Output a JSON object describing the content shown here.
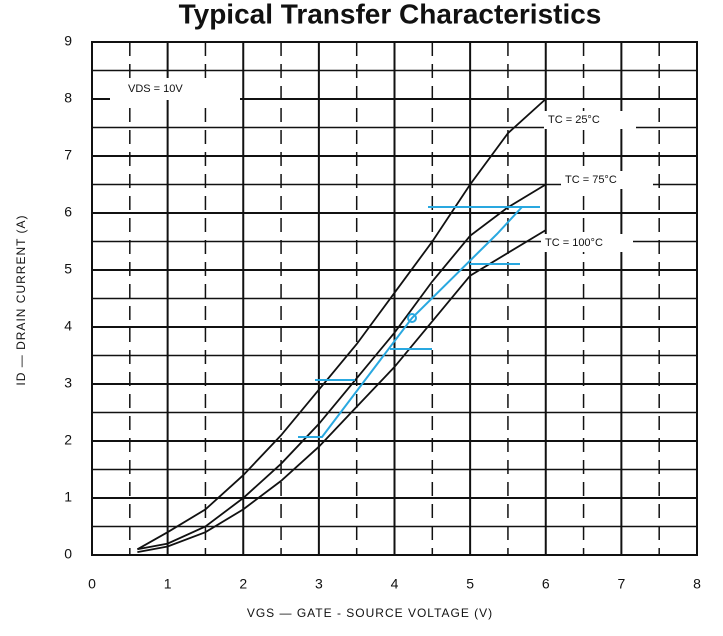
{
  "chart_data": {
    "type": "line",
    "title": "Typical Transfer Characteristics",
    "xlabel": "VGS — GATE - SOURCE VOLTAGE (V)",
    "ylabel": "ID — DRAIN CURRENT (A)",
    "annotation": "VDS = 10V",
    "xlim": [
      0,
      8
    ],
    "ylim": [
      0,
      9
    ],
    "xticks": [
      0,
      1,
      2,
      3,
      4,
      5,
      6,
      7,
      8
    ],
    "yticks": [
      0,
      1,
      2,
      3,
      4,
      5,
      6,
      7,
      8,
      9
    ],
    "x_minor_grid": [
      0.5,
      1.5,
      2.5,
      3.5,
      4.5,
      5.5,
      6.5,
      7.5
    ],
    "y_minor_grid": [
      0.5,
      1.5,
      2.5,
      3.5,
      4.5,
      5.5,
      6.5,
      7.5,
      8.5
    ],
    "grid": true,
    "x": [
      0.6,
      1,
      1.5,
      2,
      2.5,
      3,
      3.5,
      4,
      4.5,
      5,
      5.5,
      6
    ],
    "series": [
      {
        "name": "TC = 25°C",
        "color": "#111111",
        "values": [
          0.1,
          0.4,
          0.8,
          1.4,
          2.1,
          2.9,
          3.7,
          4.6,
          5.5,
          6.5,
          7.4,
          8.0
        ]
      },
      {
        "name": "TC = 75°C",
        "color": "#111111",
        "values": [
          0.1,
          0.2,
          0.5,
          1.0,
          1.6,
          2.3,
          3.1,
          3.9,
          4.8,
          5.6,
          6.1,
          6.5
        ]
      },
      {
        "name": "TC = 100°C",
        "color": "#111111",
        "values": [
          0.05,
          0.15,
          0.4,
          0.8,
          1.3,
          1.9,
          2.6,
          3.3,
          4.1,
          4.9,
          5.3,
          5.7
        ]
      }
    ]
  }
}
